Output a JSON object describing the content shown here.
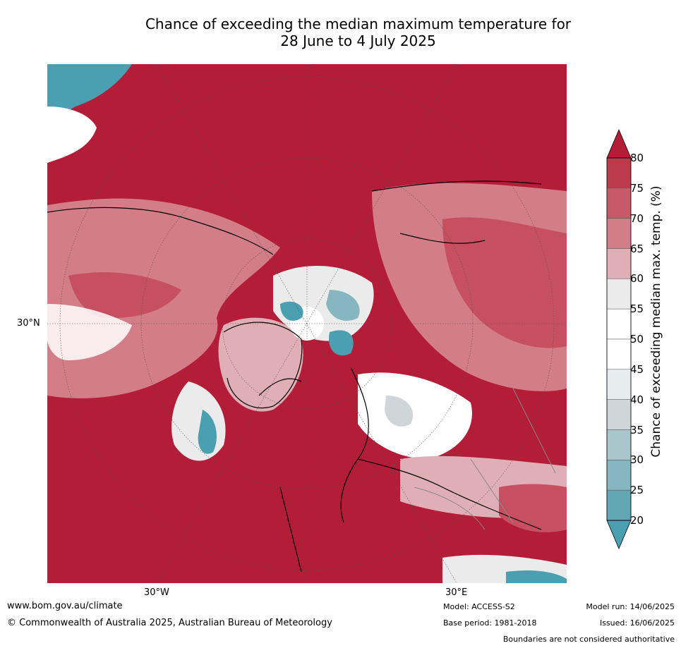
{
  "title": {
    "line1": "Chance of exceeding the median maximum temperature for",
    "line2": "28 June to 4 July 2025"
  },
  "map": {
    "lat_label": "30°N",
    "lon_labels": [
      "30°W",
      "30°E"
    ],
    "colors": {
      "very_high": "#b41d37",
      "high": "#c6505f",
      "mid_high": "#d98a93",
      "light_high": "#e8bdc2",
      "neutral_light": "#ebebeb",
      "neutral": "#ffffff",
      "light_low": "#e3e8ea",
      "low_gray": "#cfd7da",
      "low": "#9cc1c9",
      "very_low": "#4a9fb0"
    }
  },
  "colorbar": {
    "title": "Chance of exceeding median max. temp. (%)",
    "ticks": [
      "80",
      "75",
      "70",
      "65",
      "60",
      "55",
      "50",
      "45",
      "40",
      "35",
      "30",
      "25",
      "20"
    ],
    "colors": [
      "#b41d37",
      "#bd3a4c",
      "#c75a69",
      "#d27d88",
      "#e0afb6",
      "#ebebeb",
      "#ffffff",
      "#ffffff",
      "#e7ecee",
      "#cfd6d9",
      "#a9c6cc",
      "#86b6c0",
      "#62a6b4",
      "#4a9fb0"
    ]
  },
  "footer": {
    "website": "www.bom.gov.au/climate",
    "copyright": "© Commonwealth of Australia 2025, Australian Bureau of Meteorology",
    "model": "Model: ACCESS-S2",
    "base_period": "Base period: 1981-2018",
    "model_run": "Model run: 14/06/2025",
    "issued": "Issued: 16/06/2025",
    "disclaimer": "Boundaries are not considered authoritative"
  }
}
